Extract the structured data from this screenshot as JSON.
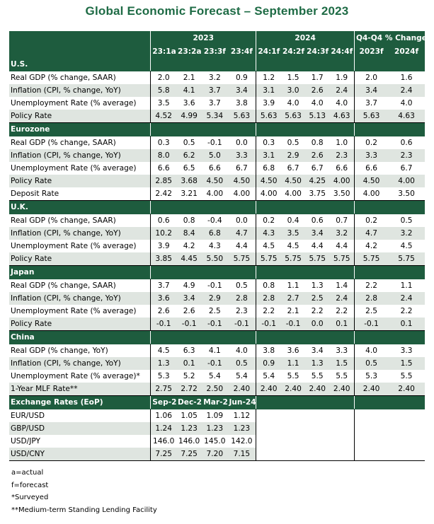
{
  "title": "Global Economic Forecast – September 2023",
  "header": {
    "year_2023": "2023",
    "year_2024": "2024",
    "q4_label": "Q4-Q4 % Change",
    "cols": [
      "23:1a",
      "23:2a",
      "23:3f",
      "23:4f",
      "24:1f",
      "24:2f",
      "24:3f",
      "24:4f",
      "2023f",
      "2024f"
    ]
  },
  "sections": [
    {
      "name": "U.S.",
      "rows": [
        {
          "label": "Real GDP (% change, SAAR)",
          "values": [
            "2.0",
            "2.1",
            "3.2",
            "0.9",
            "1.2",
            "1.5",
            "1.7",
            "1.9",
            "2.0",
            "1.6"
          ]
        },
        {
          "label": "Inflation (CPI, % change, YoY)",
          "values": [
            "5.8",
            "4.1",
            "3.7",
            "3.4",
            "3.1",
            "3.0",
            "2.6",
            "2.4",
            "3.4",
            "2.4"
          ]
        },
        {
          "label": "Unemployment Rate (% average)",
          "values": [
            "3.5",
            "3.6",
            "3.7",
            "3.8",
            "3.9",
            "4.0",
            "4.0",
            "4.0",
            "3.7",
            "4.0"
          ]
        },
        {
          "label": "Policy Rate",
          "values": [
            "4.52",
            "4.99",
            "5.34",
            "5.63",
            "5.63",
            "5.63",
            "5.13",
            "4.63",
            "5.63",
            "4.63"
          ]
        }
      ]
    },
    {
      "name": "Eurozone",
      "rows": [
        {
          "label": "Real GDP (% change, SAAR)",
          "values": [
            "0.3",
            "0.5",
            "-0.1",
            "0.0",
            "0.3",
            "0.5",
            "0.8",
            "1.0",
            "0.2",
            "0.6"
          ]
        },
        {
          "label": "Inflation (CPI, % change, YoY)",
          "values": [
            "8.0",
            "6.2",
            "5.0",
            "3.3",
            "3.1",
            "2.9",
            "2.6",
            "2.3",
            "3.3",
            "2.3"
          ]
        },
        {
          "label": "Unemployment Rate (% average)",
          "values": [
            "6.6",
            "6.5",
            "6.6",
            "6.7",
            "6.8",
            "6.7",
            "6.7",
            "6.6",
            "6.6",
            "6.7"
          ]
        },
        {
          "label": "Policy Rate",
          "values": [
            "2.85",
            "3.68",
            "4.50",
            "4.50",
            "4.50",
            "4.50",
            "4.25",
            "4.00",
            "4.50",
            "4.00"
          ]
        },
        {
          "label": "Deposit Rate",
          "values": [
            "2.42",
            "3.21",
            "4.00",
            "4.00",
            "4.00",
            "4.00",
            "3.75",
            "3.50",
            "4.00",
            "3.50"
          ]
        }
      ]
    },
    {
      "name": "U.K.",
      "rows": [
        {
          "label": "Real GDP (% change, SAAR)",
          "values": [
            "0.6",
            "0.8",
            "-0.4",
            "0.0",
            "0.2",
            "0.4",
            "0.6",
            "0.7",
            "0.2",
            "0.5"
          ]
        },
        {
          "label": "Inflation (CPI, % change, YoY)",
          "values": [
            "10.2",
            "8.4",
            "6.8",
            "4.7",
            "4.3",
            "3.5",
            "3.4",
            "3.2",
            "4.7",
            "3.2"
          ]
        },
        {
          "label": "Unemployment Rate (% average)",
          "values": [
            "3.9",
            "4.2",
            "4.3",
            "4.4",
            "4.5",
            "4.5",
            "4.4",
            "4.4",
            "4.2",
            "4.5"
          ]
        },
        {
          "label": "Policy Rate",
          "values": [
            "3.85",
            "4.45",
            "5.50",
            "5.75",
            "5.75",
            "5.75",
            "5.75",
            "5.75",
            "5.75",
            "5.75"
          ]
        }
      ]
    },
    {
      "name": "Japan",
      "rows": [
        {
          "label": "Real GDP (% change, SAAR)",
          "values": [
            "3.7",
            "4.9",
            "-0.1",
            "0.5",
            "0.8",
            "1.1",
            "1.3",
            "1.4",
            "2.2",
            "1.1"
          ]
        },
        {
          "label": "Inflation (CPI, % change, YoY)",
          "values": [
            "3.6",
            "3.4",
            "2.9",
            "2.8",
            "2.8",
            "2.7",
            "2.5",
            "2.4",
            "2.8",
            "2.4"
          ]
        },
        {
          "label": "Unemployment Rate (% average)",
          "values": [
            "2.6",
            "2.6",
            "2.5",
            "2.3",
            "2.2",
            "2.1",
            "2.2",
            "2.2",
            "2.5",
            "2.2"
          ]
        },
        {
          "label": "Policy Rate",
          "values": [
            "-0.1",
            "-0.1",
            "-0.1",
            "-0.1",
            "-0.1",
            "-0.1",
            "0.0",
            "0.1",
            "-0.1",
            "0.1"
          ]
        }
      ]
    },
    {
      "name": "China",
      "rows": [
        {
          "label": "Real GDP (% change, YoY)",
          "values": [
            "4.5",
            "6.3",
            "4.1",
            "4.0",
            "3.8",
            "3.6",
            "3.4",
            "3.3",
            "4.0",
            "3.3"
          ]
        },
        {
          "label": "Inflation (CPI, % change, YoY)",
          "values": [
            "1.3",
            "0.1",
            "-0.1",
            "0.5",
            "0.9",
            "1.1",
            "1.3",
            "1.5",
            "0.5",
            "1.5"
          ]
        },
        {
          "label": "Unemployment Rate (% average)*",
          "values": [
            "5.3",
            "5.2",
            "5.4",
            "5.4",
            "5.4",
            "5.5",
            "5.5",
            "5.5",
            "5.3",
            "5.5"
          ]
        },
        {
          "label": "1-Year MLF Rate**",
          "values": [
            "2.75",
            "2.72",
            "2.50",
            "2.40",
            "2.40",
            "2.40",
            "2.40",
            "2.40",
            "2.40",
            "2.40"
          ]
        }
      ]
    }
  ],
  "fx": {
    "title": "Exchange Rates (EoP)",
    "cols": [
      "Sep-23",
      "Dec-23",
      "Mar-24",
      "Jun-24"
    ],
    "rows": [
      {
        "label": "EUR/USD",
        "values": [
          "1.06",
          "1.05",
          "1.09",
          "1.12"
        ]
      },
      {
        "label": "GBP/USD",
        "values": [
          "1.24",
          "1.23",
          "1.23",
          "1.23"
        ]
      },
      {
        "label": "USD/JPY",
        "values": [
          "146.0",
          "146.0",
          "145.0",
          "142.0"
        ]
      },
      {
        "label": "USD/CNY",
        "values": [
          "7.25",
          "7.25",
          "7.20",
          "7.15"
        ]
      }
    ]
  },
  "footnotes": [
    "a=actual",
    "f=forecast",
    "*Surveyed",
    "**Medium-term Standing Lending Facility"
  ],
  "colors": {
    "band": "#1e5c3e",
    "title": "#1e6b45",
    "alt_row": "#dfe5e0"
  }
}
